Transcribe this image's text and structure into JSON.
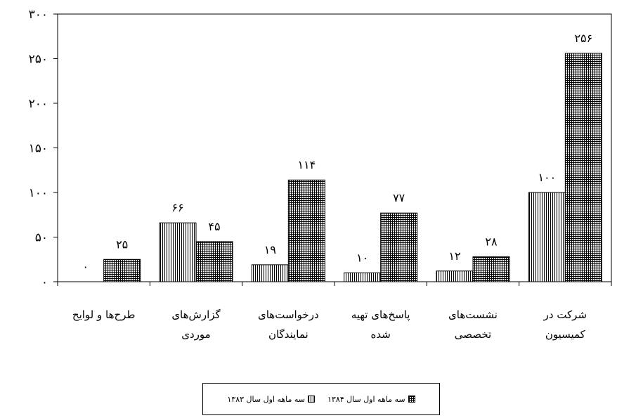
{
  "chart_data": {
    "type": "bar",
    "categories": [
      [
        "طرح‌ها و لوایح"
      ],
      [
        "گزارش‌های",
        "موردی"
      ],
      [
        "درخواست‌های",
        "نمایندگان"
      ],
      [
        "پاسخ‌های تهیه",
        "شده"
      ],
      [
        "نشست‌های",
        "تخصصی"
      ],
      [
        "شرکت در",
        "کمیسیون"
      ]
    ],
    "series": [
      {
        "name": "سه ماهه اول سال ۱۳۸۳",
        "pattern": "vertical-lines",
        "values": [
          0,
          66,
          19,
          10,
          12,
          100
        ],
        "value_labels": [
          "۰",
          "۶۶",
          "۱۹",
          "۱۰",
          "۱۲",
          "۱۰۰"
        ]
      },
      {
        "name": "سه ماهه اول سال ۱۳۸۴",
        "pattern": "grid",
        "values": [
          25,
          45,
          114,
          77,
          28,
          256
        ],
        "value_labels": [
          "۲۵",
          "۴۵",
          "۱۱۴",
          "۷۷",
          "۲۸",
          "۲۵۶"
        ]
      }
    ],
    "y_ticks": [
      0,
      50,
      100,
      150,
      200,
      250,
      300
    ],
    "y_tick_labels": [
      "۰",
      "۵۰",
      "۱۰۰",
      "۱۵۰",
      "۲۰۰",
      "۲۵۰",
      "۳۰۰"
    ],
    "ylim": [
      0,
      300
    ],
    "grid": false,
    "legend_position": "bottom",
    "colors": {
      "bar_fill": "#ffffff",
      "line": "#000000"
    }
  }
}
